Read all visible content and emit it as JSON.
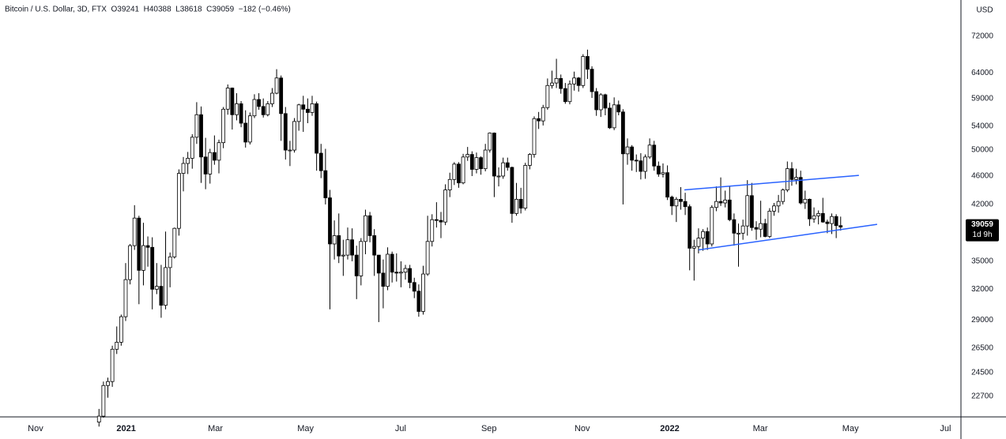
{
  "chart_data": {
    "type": "candlestick",
    "title": "Bitcoin / U.S. Dollar, 3D, FTX  O39241  H40388  L38618  C39059  −182 (−0.46%)",
    "currency": "USD",
    "countdown": "1d 9h",
    "log_scale": true,
    "up_color": "#ffffff",
    "down_color": "#000000",
    "edge_color": "#000000",
    "ylim": [
      21250,
      80900
    ],
    "yticks": [
      22700,
      24500,
      26500,
      29000,
      32000,
      35000,
      39000,
      42000,
      46000,
      50000,
      54000,
      59000,
      64000,
      72000
    ],
    "xlim": [
      -22.2,
      194
    ],
    "xticks": [
      {
        "value": -14.2,
        "label": "Nov"
      },
      {
        "value": 6.2,
        "label": "2021"
      },
      {
        "value": 26.3,
        "label": "Mar"
      },
      {
        "value": 46.6,
        "label": "May"
      },
      {
        "value": 68,
        "label": "Jul"
      },
      {
        "value": 87.9,
        "label": "Sep"
      },
      {
        "value": 108.9,
        "label": "Nov"
      },
      {
        "value": 128.6,
        "label": "2022"
      },
      {
        "value": 149,
        "label": "Mar"
      },
      {
        "value": 169.3,
        "label": "May"
      },
      {
        "value": 190.7,
        "label": "Jul"
      }
    ],
    "trendline_color": "#2962ff",
    "trendlines": [
      {
        "from": [
          131.9,
          44000
        ],
        "to": [
          171.2,
          46100
        ]
      },
      {
        "from": [
          135.1,
          36300
        ],
        "to": [
          175.3,
          39400
        ]
      }
    ],
    "candles": [
      [
        20900,
        21800,
        20600,
        21300
      ],
      [
        21300,
        23800,
        21200,
        23500
      ],
      [
        23500,
        24100,
        22600,
        23800
      ],
      [
        23800,
        26700,
        23400,
        26400
      ],
      [
        26400,
        28400,
        26000,
        27000
      ],
      [
        27000,
        29500,
        26700,
        29300
      ],
      [
        29300,
        34800,
        28900,
        33000
      ],
      [
        33000,
        37000,
        32500,
        36800
      ],
      [
        36800,
        41900,
        36300,
        40200
      ],
      [
        40200,
        40500,
        30500,
        34000
      ],
      [
        34000,
        39600,
        32400,
        36800
      ],
      [
        36800,
        37900,
        34400,
        36600
      ],
      [
        36600,
        37800,
        30000,
        32000
      ],
      [
        32000,
        34800,
        31500,
        32300
      ],
      [
        32300,
        34600,
        29200,
        30400
      ],
      [
        30400,
        38500,
        30000,
        34300
      ],
      [
        34300,
        36000,
        32200,
        35500
      ],
      [
        35500,
        39000,
        35300,
        38900
      ],
      [
        38900,
        47000,
        38000,
        46400
      ],
      [
        46400,
        48900,
        43800,
        47900
      ],
      [
        47900,
        49700,
        46300,
        48700
      ],
      [
        48700,
        52600,
        47100,
        52100
      ],
      [
        52100,
        58300,
        51000,
        56000
      ],
      [
        56000,
        57500,
        45000,
        48900
      ],
      [
        48900,
        52000,
        44100,
        46300
      ],
      [
        46300,
        50200,
        44900,
        49600
      ],
      [
        49600,
        52400,
        47700,
        48400
      ],
      [
        48400,
        51700,
        46400,
        51200
      ],
      [
        51200,
        57400,
        50300,
        57000
      ],
      [
        57000,
        61700,
        56000,
        61000
      ],
      [
        61000,
        61100,
        53400,
        56000
      ],
      [
        56000,
        60000,
        55000,
        58000
      ],
      [
        58000,
        58500,
        53800,
        54500
      ],
      [
        54500,
        56800,
        50400,
        51300
      ],
      [
        51300,
        56400,
        50900,
        55800
      ],
      [
        55800,
        59800,
        55400,
        58800
      ],
      [
        58800,
        60000,
        56900,
        57500
      ],
      [
        57500,
        59000,
        55500,
        56000
      ],
      [
        56000,
        58500,
        55700,
        58000
      ],
      [
        58000,
        61000,
        57400,
        60000
      ],
      [
        60000,
        64800,
        59800,
        63000
      ],
      [
        63000,
        63500,
        51500,
        56200
      ],
      [
        56200,
        57400,
        48500,
        50000
      ],
      [
        50000,
        51500,
        47500,
        50000
      ],
      [
        50000,
        55400,
        49600,
        54800
      ],
      [
        54800,
        58000,
        53200,
        57800
      ],
      [
        57800,
        59500,
        53000,
        57000
      ],
      [
        57000,
        59000,
        54500,
        56400
      ],
      [
        56400,
        59500,
        55800,
        58000
      ],
      [
        58000,
        58400,
        46800,
        49500
      ],
      [
        49500,
        51000,
        45700,
        46800
      ],
      [
        46800,
        50200,
        42000,
        42900
      ],
      [
        42900,
        44000,
        30000,
        37000
      ],
      [
        37000,
        39900,
        35200,
        38000
      ],
      [
        38000,
        40800,
        34800,
        35600
      ],
      [
        35600,
        37500,
        33400,
        35700
      ],
      [
        35700,
        39000,
        35200,
        37500
      ],
      [
        37500,
        38900,
        35000,
        35700
      ],
      [
        35700,
        36800,
        31000,
        33400
      ],
      [
        33400,
        37700,
        32400,
        37300
      ],
      [
        37300,
        41300,
        35800,
        40500
      ],
      [
        40500,
        41000,
        37200,
        38000
      ],
      [
        38000,
        38800,
        33400,
        35700
      ],
      [
        35700,
        35700,
        28800,
        33700
      ],
      [
        33700,
        35200,
        30100,
        32300
      ],
      [
        32300,
        36600,
        31900,
        35800
      ],
      [
        35800,
        36100,
        32700,
        33800
      ],
      [
        33800,
        35900,
        32800,
        33700
      ],
      [
        33700,
        35000,
        32200,
        33800
      ],
      [
        33800,
        34600,
        33000,
        34200
      ],
      [
        34200,
        34600,
        32100,
        32700
      ],
      [
        32700,
        33200,
        31100,
        31800
      ],
      [
        31800,
        32500,
        29300,
        29800
      ],
      [
        29800,
        34500,
        29500,
        33600
      ],
      [
        33600,
        40500,
        33400,
        37300
      ],
      [
        37300,
        40700,
        36700,
        40000
      ],
      [
        40000,
        42300,
        39000,
        39900
      ],
      [
        39900,
        41000,
        37700,
        39700
      ],
      [
        39700,
        44800,
        39300,
        44000
      ],
      [
        44000,
        46500,
        43000,
        45500
      ],
      [
        45500,
        48100,
        44700,
        47800
      ],
      [
        47800,
        48100,
        44300,
        45000
      ],
      [
        45000,
        49400,
        44800,
        48900
      ],
      [
        48900,
        50500,
        48300,
        49300
      ],
      [
        49300,
        49800,
        46000,
        47000
      ],
      [
        47000,
        49600,
        46400,
        48800
      ],
      [
        48800,
        49000,
        46200,
        47100
      ],
      [
        47100,
        51000,
        46700,
        50000
      ],
      [
        50000,
        52900,
        49600,
        52800
      ],
      [
        52800,
        52900,
        43000,
        46000
      ],
      [
        46000,
        47300,
        44500,
        46000
      ],
      [
        46000,
        48800,
        45600,
        48000
      ],
      [
        48000,
        48800,
        46800,
        47300
      ],
      [
        47300,
        47400,
        39600,
        40800
      ],
      [
        40800,
        45000,
        40500,
        42700
      ],
      [
        42700,
        44300,
        40800,
        41500
      ],
      [
        41500,
        48000,
        41200,
        47600
      ],
      [
        47600,
        49500,
        47000,
        49300
      ],
      [
        49300,
        55700,
        48800,
        55300
      ],
      [
        55300,
        56500,
        53500,
        54900
      ],
      [
        54900,
        57800,
        54100,
        57300
      ],
      [
        57300,
        62900,
        56900,
        61500
      ],
      [
        61500,
        64500,
        60900,
        62000
      ],
      [
        62000,
        67000,
        61000,
        62900
      ],
      [
        62900,
        63700,
        59900,
        60900
      ],
      [
        60900,
        62000,
        58000,
        58400
      ],
      [
        58400,
        62500,
        57900,
        61800
      ],
      [
        61800,
        64300,
        60500,
        63000
      ],
      [
        63000,
        63200,
        60300,
        61500
      ],
      [
        61500,
        68000,
        61000,
        67500
      ],
      [
        67500,
        69000,
        62800,
        64800
      ],
      [
        64800,
        65400,
        59100,
        60300
      ],
      [
        60300,
        61000,
        55800,
        56900
      ],
      [
        56900,
        60000,
        55600,
        59700
      ],
      [
        59700,
        59900,
        55900,
        57200
      ],
      [
        57200,
        58200,
        53500,
        53700
      ],
      [
        53700,
        59200,
        53300,
        57800
      ],
      [
        57800,
        58600,
        55900,
        56500
      ],
      [
        56500,
        57000,
        42000,
        49400
      ],
      [
        49400,
        51900,
        47700,
        50500
      ],
      [
        50500,
        50800,
        46800,
        48400
      ],
      [
        48400,
        49300,
        46600,
        48300
      ],
      [
        48300,
        49500,
        45500,
        46700
      ],
      [
        46700,
        49300,
        45600,
        48900
      ],
      [
        48900,
        51900,
        48600,
        50800
      ],
      [
        50800,
        51500,
        46800,
        47500
      ],
      [
        47500,
        48200,
        45900,
        46300
      ],
      [
        46300,
        47900,
        45800,
        46500
      ],
      [
        46500,
        47600,
        42600,
        43000
      ],
      [
        43000,
        43200,
        40600,
        41800
      ],
      [
        41800,
        43000,
        39700,
        42700
      ],
      [
        42700,
        44400,
        41300,
        42400
      ],
      [
        42400,
        43600,
        40600,
        41700
      ],
      [
        41700,
        42000,
        34000,
        36500
      ],
      [
        36500,
        37500,
        32900,
        36700
      ],
      [
        36700,
        38900,
        35900,
        37700
      ],
      [
        37700,
        38800,
        36200,
        38500
      ],
      [
        38500,
        39000,
        36300,
        37000
      ],
      [
        37000,
        41900,
        36700,
        41600
      ],
      [
        41600,
        44500,
        41100,
        42400
      ],
      [
        42400,
        45800,
        41800,
        42200
      ],
      [
        42200,
        43900,
        41600,
        42600
      ],
      [
        42600,
        44500,
        39800,
        40000
      ],
      [
        40000,
        40800,
        36800,
        38300
      ],
      [
        38300,
        39500,
        34400,
        38300
      ],
      [
        38300,
        40000,
        37500,
        39200
      ],
      [
        39200,
        45400,
        38000,
        43200
      ],
      [
        43200,
        45000,
        38600,
        39000
      ],
      [
        39000,
        39800,
        37500,
        38800
      ],
      [
        38800,
        42500,
        37800,
        39500
      ],
      [
        39500,
        40100,
        37800,
        37900
      ],
      [
        37900,
        41500,
        37700,
        41100
      ],
      [
        41100,
        42200,
        40500,
        41800
      ],
      [
        41800,
        43300,
        40900,
        42400
      ],
      [
        42400,
        44200,
        42000,
        44000
      ],
      [
        44000,
        48200,
        43700,
        47100
      ],
      [
        47100,
        48100,
        44600,
        45500
      ],
      [
        45500,
        47100,
        44800,
        45800
      ],
      [
        45800,
        46800,
        42000,
        42200
      ],
      [
        42200,
        43900,
        41400,
        42700
      ],
      [
        42700,
        42800,
        39200,
        40100
      ],
      [
        40100,
        41600,
        39600,
        40500
      ],
      [
        40500,
        41200,
        39400,
        40800
      ],
      [
        40800,
        42900,
        39600,
        39700
      ],
      [
        39700,
        40000,
        38300,
        39500
      ],
      [
        39500,
        40800,
        38200,
        40400
      ],
      [
        40400,
        40700,
        37700,
        39241
      ],
      [
        39241,
        40388,
        38618,
        39059
      ]
    ]
  }
}
